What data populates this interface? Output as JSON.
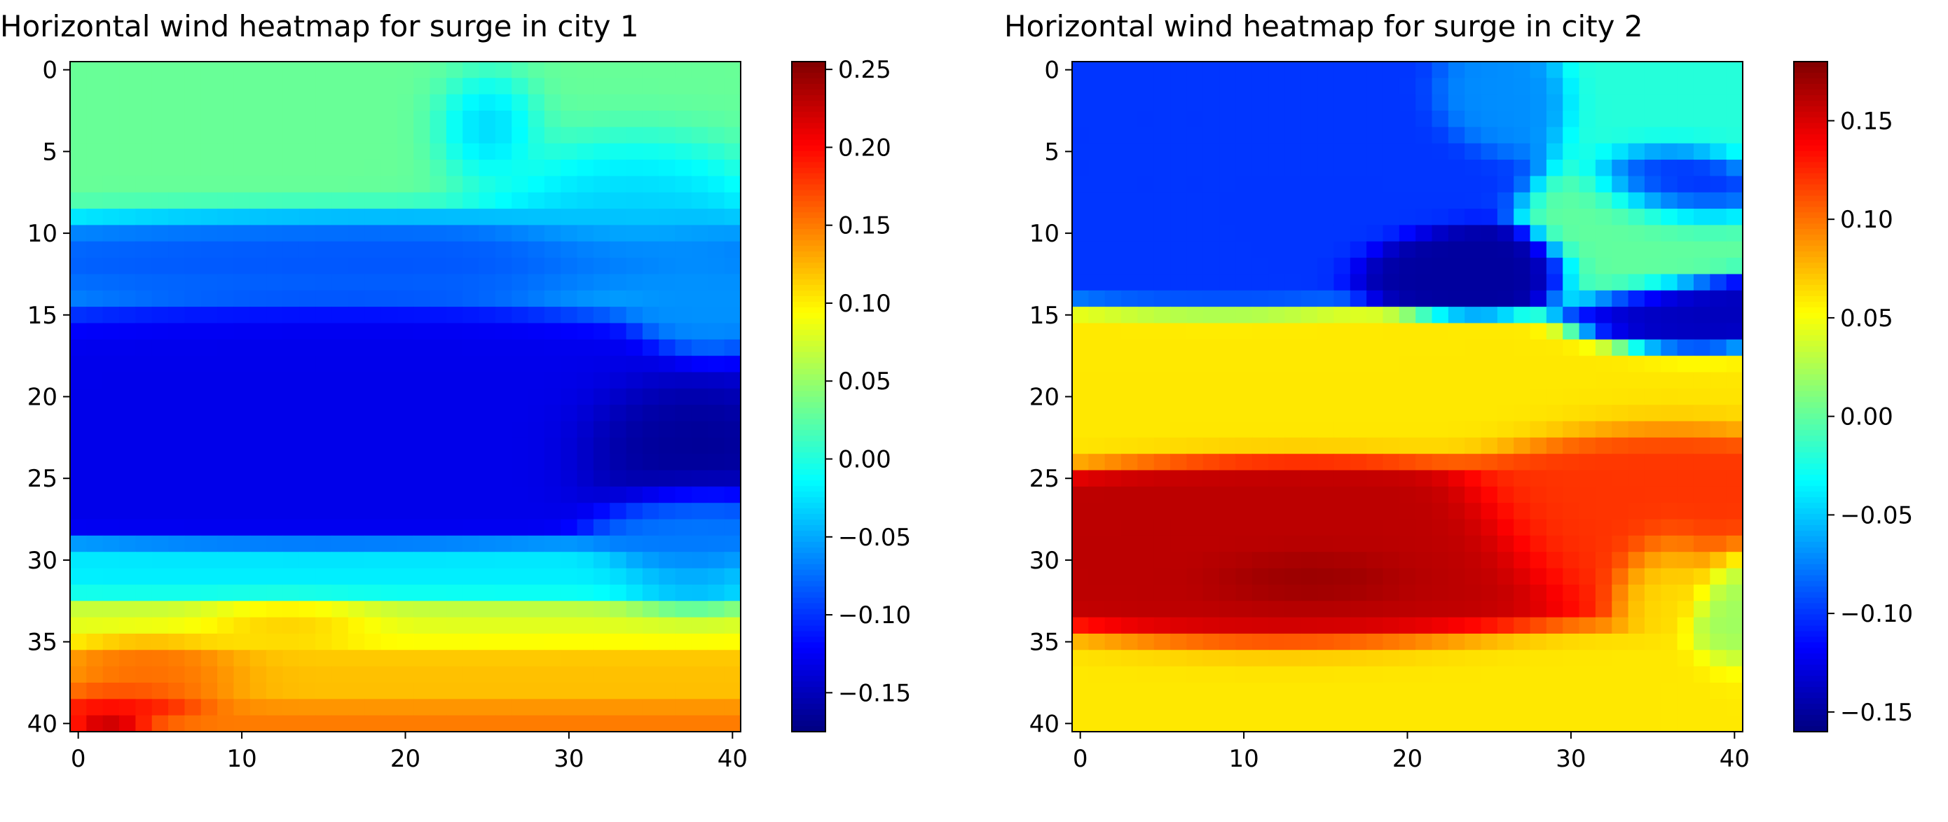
{
  "chart_data": [
    {
      "type": "heatmap",
      "title": "Horizontal wind heatmap for surge in city 1",
      "colormap": "jet",
      "grid": false,
      "xlim": [
        -0.5,
        40.5
      ],
      "ylim": [
        40.5,
        -0.5
      ],
      "xticks": [
        0,
        10,
        20,
        30,
        40
      ],
      "yticks": [
        0,
        5,
        10,
        15,
        20,
        25,
        30,
        35,
        40
      ],
      "xtick_labels": [
        "0",
        "10",
        "20",
        "30",
        "40"
      ],
      "ytick_labels": [
        "0",
        "5",
        "10",
        "15",
        "20",
        "25",
        "30",
        "35",
        "40"
      ],
      "colorbar": {
        "vmin": -0.175,
        "vmax": 0.255,
        "ticks": [
          -0.15,
          -0.1,
          -0.05,
          0.0,
          0.05,
          0.1,
          0.15,
          0.2,
          0.25
        ],
        "tick_labels": [
          "−0.15",
          "−0.10",
          "−0.05",
          "0.00",
          "0.05",
          "0.10",
          "0.15",
          "0.20",
          "0.25"
        ]
      },
      "grid_size": [
        41,
        41
      ],
      "features": [
        {
          "row": 0,
          "col": 20,
          "value": 0.03,
          "sx": 26,
          "sy": 8
        },
        {
          "row": 3,
          "col": 25,
          "value": -0.07,
          "sx": 3,
          "sy": 3
        },
        {
          "row": 8,
          "col": 33,
          "value": -0.04,
          "sx": 7,
          "sy": 4
        },
        {
          "row": 13,
          "col": 38,
          "value": -0.06,
          "sx": 3,
          "sy": 3
        },
        {
          "row": 11,
          "col": 20,
          "value": -0.09,
          "sx": 20,
          "sy": 2
        },
        {
          "row": 22,
          "col": 18,
          "value": -0.13,
          "sx": 17,
          "sy": 5
        },
        {
          "row": 23,
          "col": 36,
          "value": -0.17,
          "sx": 5,
          "sy": 3
        },
        {
          "row": 29,
          "col": 37,
          "value": -0.07,
          "sx": 4,
          "sy": 3
        },
        {
          "row": 31,
          "col": 20,
          "value": -0.02,
          "sx": 22,
          "sy": 1.5
        },
        {
          "row": 34,
          "col": 18,
          "value": 0.08,
          "sx": 22,
          "sy": 1.5
        },
        {
          "row": 37,
          "col": 20,
          "value": 0.12,
          "sx": 22,
          "sy": 2
        },
        {
          "row": 34,
          "col": 13,
          "value": 0.14,
          "sx": 5,
          "sy": 1.2
        },
        {
          "row": 37,
          "col": 5,
          "value": 0.17,
          "sx": 5,
          "sy": 2
        },
        {
          "row": 40,
          "col": 20,
          "value": 0.15,
          "sx": 22,
          "sy": 1.2
        },
        {
          "row": 39,
          "col": 3,
          "value": 0.21,
          "sx": 4,
          "sy": 1
        },
        {
          "row": 40,
          "col": 2,
          "value": 0.25,
          "sx": 2,
          "sy": 0.7
        }
      ]
    },
    {
      "type": "heatmap",
      "title": "Horizontal wind heatmap for surge in city 2",
      "colormap": "jet",
      "grid": false,
      "xlim": [
        -0.5,
        40.5
      ],
      "ylim": [
        40.5,
        -0.5
      ],
      "xticks": [
        0,
        10,
        20,
        30,
        40
      ],
      "yticks": [
        0,
        5,
        10,
        15,
        20,
        25,
        30,
        35,
        40
      ],
      "xtick_labels": [
        "0",
        "10",
        "20",
        "30",
        "40"
      ],
      "ytick_labels": [
        "0",
        "5",
        "10",
        "15",
        "20",
        "25",
        "30",
        "35",
        "40"
      ],
      "colorbar": {
        "vmin": -0.16,
        "vmax": 0.18,
        "ticks": [
          -0.15,
          -0.1,
          -0.05,
          0.0,
          0.05,
          0.1,
          0.15
        ],
        "tick_labels": [
          "−0.15",
          "−0.10",
          "−0.05",
          "0.00",
          "0.05",
          "0.10",
          "0.15"
        ]
      },
      "grid_size": [
        41,
        41
      ],
      "features": [
        {
          "row": 5,
          "col": 10,
          "value": -0.1,
          "sx": 10,
          "sy": 4.5
        },
        {
          "row": 2,
          "col": 26,
          "value": -0.07,
          "sx": 3,
          "sy": 2
        },
        {
          "row": 12,
          "col": 24,
          "value": -0.15,
          "sx": 4,
          "sy": 1.5
        },
        {
          "row": 7,
          "col": 36,
          "value": -0.11,
          "sx": 3,
          "sy": 2
        },
        {
          "row": 15,
          "col": 37,
          "value": -0.14,
          "sx": 4,
          "sy": 1.5
        },
        {
          "row": 10,
          "col": 34,
          "value": 0.0,
          "sx": 4,
          "sy": 3
        },
        {
          "row": 2,
          "col": 36,
          "value": -0.02,
          "sx": 5,
          "sy": 3
        },
        {
          "row": 20,
          "col": 15,
          "value": 0.06,
          "sx": 22,
          "sy": 2.5
        },
        {
          "row": 30,
          "col": 14,
          "value": 0.16,
          "sx": 11,
          "sy": 4
        },
        {
          "row": 31,
          "col": 14,
          "value": 0.18,
          "sx": 5,
          "sy": 1.5
        },
        {
          "row": 27,
          "col": 34,
          "value": 0.12,
          "sx": 7,
          "sy": 4
        },
        {
          "row": 31,
          "col": 36,
          "value": 0.06,
          "sx": 2.5,
          "sy": 2.5
        },
        {
          "row": 33,
          "col": 40,
          "value": 0.02,
          "sx": 2,
          "sy": 3
        },
        {
          "row": 38,
          "col": 20,
          "value": 0.06,
          "sx": 24,
          "sy": 2.5
        }
      ]
    }
  ]
}
